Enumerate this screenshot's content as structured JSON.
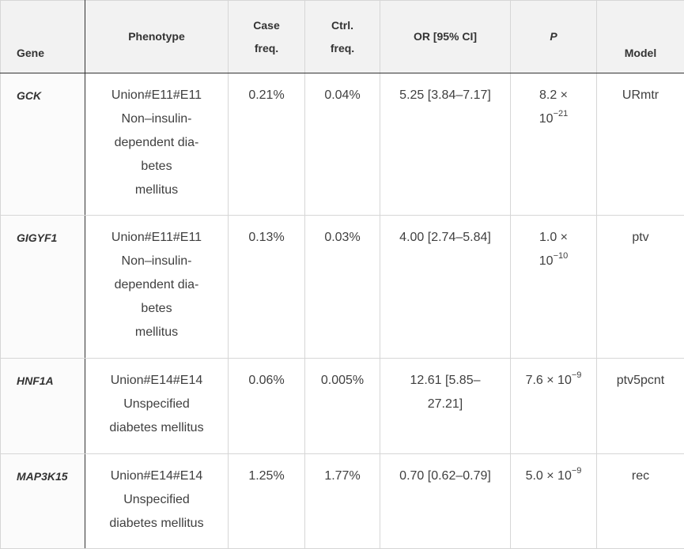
{
  "table": {
    "headers": {
      "gene": "Gene",
      "phenotype": "Phenotype",
      "case_freq_line1": "Case",
      "case_freq_line2": "freq.",
      "ctrl_freq_line1": "Ctrl.",
      "ctrl_freq_line2": "freq.",
      "or_ci": "OR [95% CI]",
      "p": "P",
      "model": "Model"
    },
    "rows": [
      {
        "gene": "GCK",
        "phenotype_lines": [
          "Union#E11#E11",
          "Non–insulin-",
          "dependent dia-",
          "betes",
          "mellitus"
        ],
        "case_freq": "0.21%",
        "ctrl_freq": "0.04%",
        "or_ci": "5.25 [3.84–7.17]",
        "p_line1": "8.2 ×",
        "p_base": "10",
        "p_exp": "−21",
        "model": "URmtr"
      },
      {
        "gene": "GIGYF1",
        "phenotype_lines": [
          "Union#E11#E11",
          "Non–insulin-",
          "dependent dia-",
          "betes",
          "mellitus"
        ],
        "case_freq": "0.13%",
        "ctrl_freq": "0.03%",
        "or_ci": "4.00 [2.74–5.84]",
        "p_line1": "1.0 ×",
        "p_base": "10",
        "p_exp": "−10",
        "model": "ptv"
      },
      {
        "gene": "HNF1A",
        "phenotype_lines": [
          "Union#E14#E14",
          "Unspecified",
          "diabetes mellitus"
        ],
        "case_freq": "0.06%",
        "ctrl_freq": "0.005%",
        "or_ci_line1": "12.61 [5.85–",
        "or_ci_line2": "27.21]",
        "p_base": "7.6 × 10",
        "p_exp": "−9",
        "model": "ptv5pcnt"
      },
      {
        "gene": "MAP3K15",
        "phenotype_lines": [
          "Union#E14#E14",
          "Unspecified",
          "diabetes mellitus"
        ],
        "case_freq": "1.25%",
        "ctrl_freq": "1.77%",
        "or_ci": "0.70 [0.62–0.79]",
        "p_base": "5.0 × 10",
        "p_exp": "−9",
        "model": "rec"
      }
    ]
  }
}
